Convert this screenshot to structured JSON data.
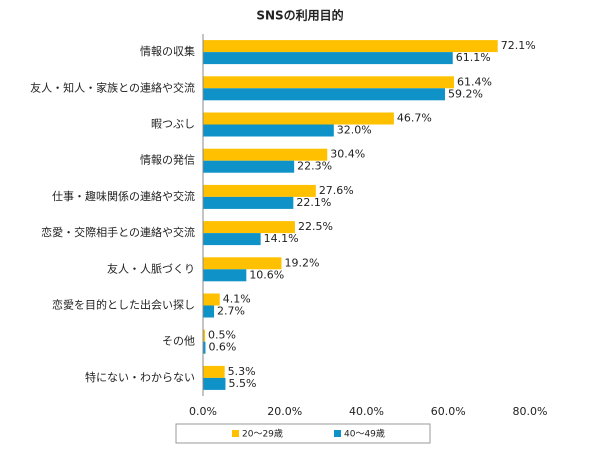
{
  "chart_data": {
    "type": "bar",
    "orientation": "horizontal",
    "title": "SNSの利用目的",
    "categories": [
      "情報の収集",
      "友人・知人・家族との連絡や交流",
      "暇つぶし",
      "情報の発信",
      "仕事・趣味関係の連絡や交流",
      "恋愛・交際相手との連絡や交流",
      "友人・人脈づくり",
      "恋愛を目的とした出会い探し",
      "その他",
      "特にない・わからない"
    ],
    "series": [
      {
        "name": "20～29歳",
        "color": "#ffc000",
        "label_color": "#8c6d00",
        "values": [
          72.1,
          61.4,
          46.7,
          30.4,
          27.6,
          22.5,
          19.2,
          4.1,
          0.5,
          5.3
        ],
        "value_labels": [
          "72.1%",
          "61.4%",
          "46.7%",
          "30.4%",
          "27.6%",
          "22.5%",
          "19.2%",
          "4.1%",
          "0.5%",
          "5.3%"
        ]
      },
      {
        "name": "40～49歳",
        "color": "#0e92c8",
        "label_color": "#1a8cc0",
        "values": [
          61.1,
          59.2,
          32.0,
          22.3,
          22.1,
          14.1,
          10.6,
          2.7,
          0.6,
          5.5
        ],
        "value_labels": [
          "61.1%",
          "59.2%",
          "32.0%",
          "22.3%",
          "22.1%",
          "14.1%",
          "10.6%",
          "2.7%",
          "0.6%",
          "5.5%"
        ]
      }
    ],
    "xlim": [
      0,
      80
    ],
    "xticks": [
      {
        "value": 0,
        "label": "0.0%"
      },
      {
        "value": 20,
        "label": "20.0%"
      },
      {
        "value": 40,
        "label": "40.0%"
      },
      {
        "value": 60,
        "label": "60.0%"
      },
      {
        "value": 80,
        "label": "80.0%"
      }
    ],
    "grid": false,
    "legend": "bottom"
  }
}
